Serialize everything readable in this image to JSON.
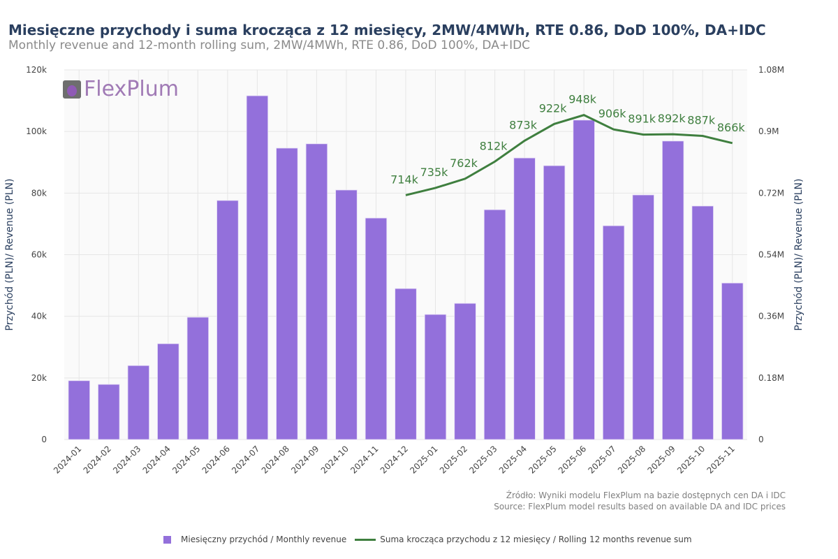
{
  "title": "Miesięczne przychody i suma krocząca z 12 miesięcy, 2MW/4MWh, RTE 0.86, DoD 100%, DA+IDC",
  "subtitle": "Monthly revenue and 12-month rolling sum, 2MW/4MWh, RTE 0.86, DoD 100%, DA+IDC",
  "logo_text": "FlexPlum",
  "source": [
    "Źródło: Wyniki modelu FlexPlum na bazie dostępnych cen DA i IDC",
    "Source: FlexPlum model results based on available DA and IDC prices"
  ],
  "chart_data": {
    "type": "bar+line",
    "categories": [
      "2024-01",
      "2024-02",
      "2024-03",
      "2024-04",
      "2024-05",
      "2024-06",
      "2024-07",
      "2024-08",
      "2024-09",
      "2024-10",
      "2024-11",
      "2024-12",
      "2025-01",
      "2025-02",
      "2025-03",
      "2025-04",
      "2025-05",
      "2025-06",
      "2025-07",
      "2025-08",
      "2025-09",
      "2025-10",
      "2025-11"
    ],
    "series": [
      {
        "name": "Miesięczny przychód / Monthly revenue",
        "type": "bar",
        "axis": "left",
        "color": "#9370db",
        "values": [
          19100,
          17900,
          24000,
          31100,
          39700,
          77600,
          111600,
          94600,
          96000,
          81000,
          71900,
          49000,
          40600,
          44200,
          74600,
          91400,
          88900,
          103700,
          69400,
          79400,
          96900,
          75800,
          50800
        ]
      },
      {
        "name": "Suma krocząca przychodu z 12 miesięcy / Rolling 12 months revenue sum",
        "type": "line",
        "axis": "right",
        "color": "#3f7f3f",
        "x": [
          "2024-12",
          "2025-01",
          "2025-02",
          "2025-03",
          "2025-04",
          "2025-05",
          "2025-06",
          "2025-07",
          "2025-08",
          "2025-09",
          "2025-10",
          "2025-11"
        ],
        "values": [
          714000,
          735000,
          762000,
          812000,
          873000,
          922000,
          948000,
          906000,
          891000,
          892000,
          887000,
          866000
        ],
        "labels": [
          "714k",
          "735k",
          "762k",
          "812k",
          "873k",
          "922k",
          "948k",
          "906k",
          "891k",
          "892k",
          "887k",
          "866k"
        ]
      }
    ],
    "ylabel_left": "Przychód (PLN)/ Revenue (PLN)",
    "ylabel_right": "Przychód (PLN)/ Revenue (PLN)",
    "ylim_left": [
      0,
      120000
    ],
    "ylim_right": [
      0,
      1080000
    ],
    "yticks_left": [
      "0",
      "20k",
      "40k",
      "60k",
      "80k",
      "100k",
      "120k"
    ],
    "yticks_right": [
      "0",
      "0.18M",
      "0.36M",
      "0.54M",
      "0.72M",
      "0.9M",
      "1.08M"
    ],
    "grid": true,
    "legend": "bottom"
  }
}
